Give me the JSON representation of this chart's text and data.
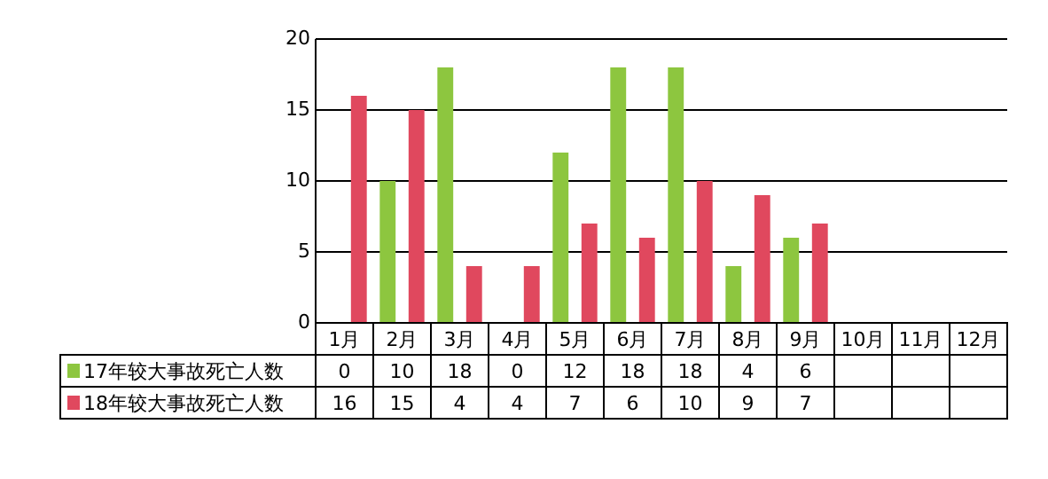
{
  "chart_data": {
    "type": "bar",
    "categories": [
      "1月",
      "2月",
      "3月",
      "4月",
      "5月",
      "6月",
      "7月",
      "8月",
      "9月",
      "10月",
      "11月",
      "12月"
    ],
    "series": [
      {
        "name": "17年较大事故死亡人数",
        "color": "#8dc63f",
        "values": [
          0,
          10,
          18,
          0,
          12,
          18,
          18,
          4,
          6,
          null,
          null,
          null
        ]
      },
      {
        "name": "18年较大事故死亡人数",
        "color": "#e0485e",
        "values": [
          16,
          15,
          4,
          4,
          7,
          6,
          10,
          9,
          7,
          null,
          null,
          null
        ]
      }
    ],
    "ylim": [
      0,
      20
    ],
    "yticks": [
      0,
      5,
      10,
      15,
      20
    ],
    "grid": "y",
    "legend": "bottom",
    "data_labels": true
  }
}
